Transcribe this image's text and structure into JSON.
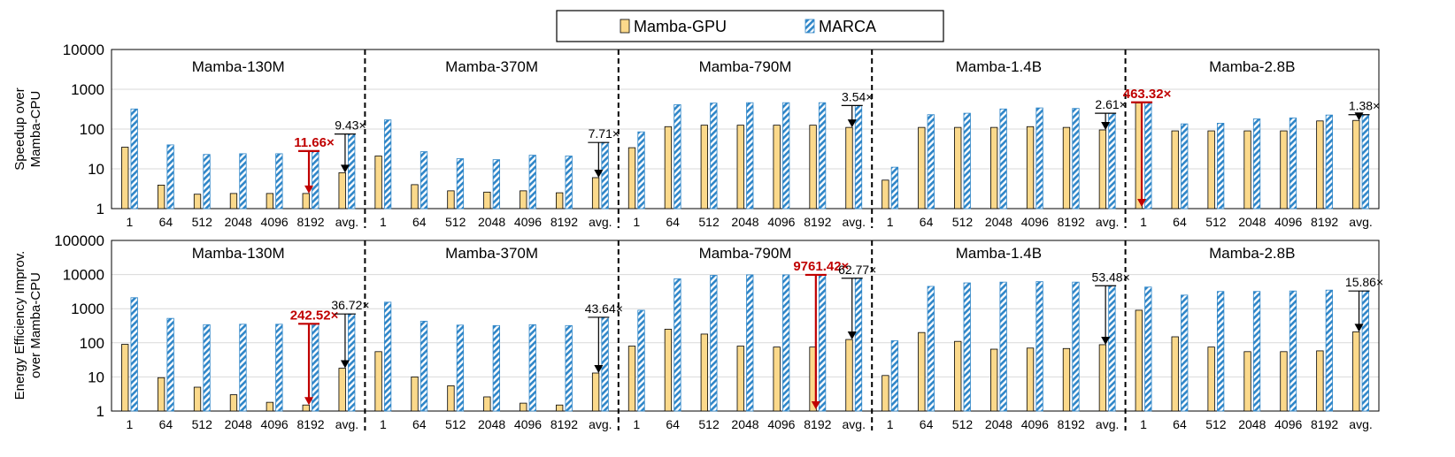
{
  "legend": {
    "gpu_label": "Mamba-GPU",
    "marca_label": "MARCA",
    "gpu_color": "#fbd98b",
    "marca_color": "#2f86c8"
  },
  "chart_data": [
    {
      "type": "bar",
      "scale": "log",
      "ylabel_lines": [
        "Speedup over",
        "Mamba-CPU"
      ],
      "ylim": [
        1,
        10000
      ],
      "yticks": [
        "1",
        "10",
        "100",
        "1000",
        "10000"
      ],
      "groups": [
        {
          "model": "Mamba-130M",
          "categories": [
            "1",
            "64",
            "512",
            "2048",
            "4096",
            "8192",
            "avg."
          ],
          "gpu": [
            35,
            3.9,
            2.3,
            2.4,
            2.4,
            2.4,
            8.0
          ],
          "marca": [
            320,
            40,
            23,
            24,
            24,
            28,
            75
          ],
          "annotations": [
            {
              "text": "11.66×",
              "category_index": 5,
              "color": "red",
              "from": 28,
              "to": 2.4
            },
            {
              "text": "9.43×",
              "category_index": 6,
              "color": "black",
              "from": 75,
              "to": 8.0
            }
          ]
        },
        {
          "model": "Mamba-370M",
          "categories": [
            "1",
            "64",
            "512",
            "2048",
            "4096",
            "8192",
            "avg."
          ],
          "gpu": [
            21,
            4.0,
            2.8,
            2.6,
            2.8,
            2.5,
            6.0
          ],
          "marca": [
            170,
            27,
            18,
            17,
            22,
            21,
            46
          ],
          "annotations": [
            {
              "text": "7.71×",
              "category_index": 6,
              "color": "black",
              "from": 46,
              "to": 6.0
            }
          ]
        },
        {
          "model": "Mamba-790M",
          "categories": [
            "1",
            "64",
            "512",
            "2048",
            "4096",
            "8192",
            "avg."
          ],
          "gpu": [
            34,
            115,
            125,
            125,
            125,
            125,
            110
          ],
          "marca": [
            85,
            410,
            450,
            460,
            460,
            460,
            390
          ],
          "annotations": [
            {
              "text": "3.54×",
              "category_index": 6,
              "color": "black",
              "from": 390,
              "to": 110
            }
          ]
        },
        {
          "model": "Mamba-1.4B",
          "categories": [
            "1",
            "64",
            "512",
            "2048",
            "4096",
            "8192",
            "avg."
          ],
          "gpu": [
            5.2,
            110,
            110,
            110,
            115,
            110,
            95
          ],
          "marca": [
            11,
            230,
            250,
            320,
            340,
            330,
            250
          ],
          "annotations": [
            {
              "text": "2.61×",
              "category_index": 6,
              "color": "black",
              "from": 250,
              "to": 95
            }
          ]
        },
        {
          "model": "Mamba-2.8B",
          "categories": [
            "1",
            "64",
            "512",
            "2048",
            "4096",
            "8192",
            "avg."
          ],
          "gpu": [
            450,
            90,
            90,
            90,
            90,
            160,
            165
          ],
          "marca": [
            470,
            135,
            140,
            180,
            190,
            225,
            230
          ],
          "annotations": [
            {
              "text": "463.32×",
              "category_index": 0,
              "color": "red",
              "from": 470,
              "to": 1
            },
            {
              "text": "1.38×",
              "category_index": 6,
              "color": "black",
              "from": 230,
              "to": 165
            }
          ]
        }
      ]
    },
    {
      "type": "bar",
      "scale": "log",
      "ylabel_lines": [
        "Energy Efficiency Improv.",
        "over Mamba-CPU"
      ],
      "ylim": [
        1,
        100000
      ],
      "yticks": [
        "1",
        "10",
        "100",
        "1000",
        "10000",
        "100000"
      ],
      "groups": [
        {
          "model": "Mamba-130M",
          "categories": [
            "1",
            "64",
            "512",
            "2048",
            "4096",
            "8192",
            "avg."
          ],
          "gpu": [
            90,
            9.5,
            5.0,
            3.0,
            1.8,
            1.5,
            18
          ],
          "marca": [
            2100,
            520,
            340,
            350,
            350,
            360,
            700
          ],
          "annotations": [
            {
              "text": "242.52×",
              "category_index": 5,
              "color": "red",
              "from": 360,
              "to": 1.5
            },
            {
              "text": "36.72×",
              "category_index": 6,
              "color": "black",
              "from": 700,
              "to": 18
            }
          ]
        },
        {
          "model": "Mamba-370M",
          "categories": [
            "1",
            "64",
            "512",
            "2048",
            "4096",
            "8192",
            "avg."
          ],
          "gpu": [
            55,
            10,
            5.5,
            2.6,
            1.7,
            1.5,
            13
          ],
          "marca": [
            1550,
            430,
            330,
            320,
            340,
            320,
            560
          ],
          "annotations": [
            {
              "text": "43.64×",
              "category_index": 6,
              "color": "black",
              "from": 560,
              "to": 13
            }
          ]
        },
        {
          "model": "Mamba-790M",
          "categories": [
            "1",
            "64",
            "512",
            "2048",
            "4096",
            "8192",
            "avg."
          ],
          "gpu": [
            80,
            250,
            180,
            80,
            75,
            75,
            125
          ],
          "marca": [
            900,
            7500,
            9500,
            9800,
            9800,
            9800,
            7800
          ],
          "annotations": [
            {
              "text": "9761.42×",
              "category_index": 5,
              "color": "red",
              "from": 9800,
              "to": 1
            },
            {
              "text": "62.77×",
              "category_index": 6,
              "color": "black",
              "from": 7800,
              "to": 125
            }
          ]
        },
        {
          "model": "Mamba-1.4B",
          "categories": [
            "1",
            "64",
            "512",
            "2048",
            "4096",
            "8192",
            "avg."
          ],
          "gpu": [
            11,
            200,
            110,
            65,
            70,
            68,
            88
          ],
          "marca": [
            115,
            4500,
            5700,
            6000,
            6200,
            6000,
            4700
          ],
          "annotations": [
            {
              "text": "53.48×",
              "category_index": 6,
              "color": "black",
              "from": 4700,
              "to": 88
            }
          ]
        },
        {
          "model": "Mamba-2.8B",
          "categories": [
            "1",
            "64",
            "512",
            "2048",
            "4096",
            "8192",
            "avg."
          ],
          "gpu": [
            900,
            150,
            75,
            55,
            55,
            58,
            210
          ],
          "marca": [
            4300,
            2500,
            3200,
            3200,
            3300,
            3500,
            3300
          ],
          "annotations": [
            {
              "text": "15.86×",
              "category_index": 6,
              "color": "black",
              "from": 3300,
              "to": 210
            }
          ]
        }
      ]
    }
  ]
}
